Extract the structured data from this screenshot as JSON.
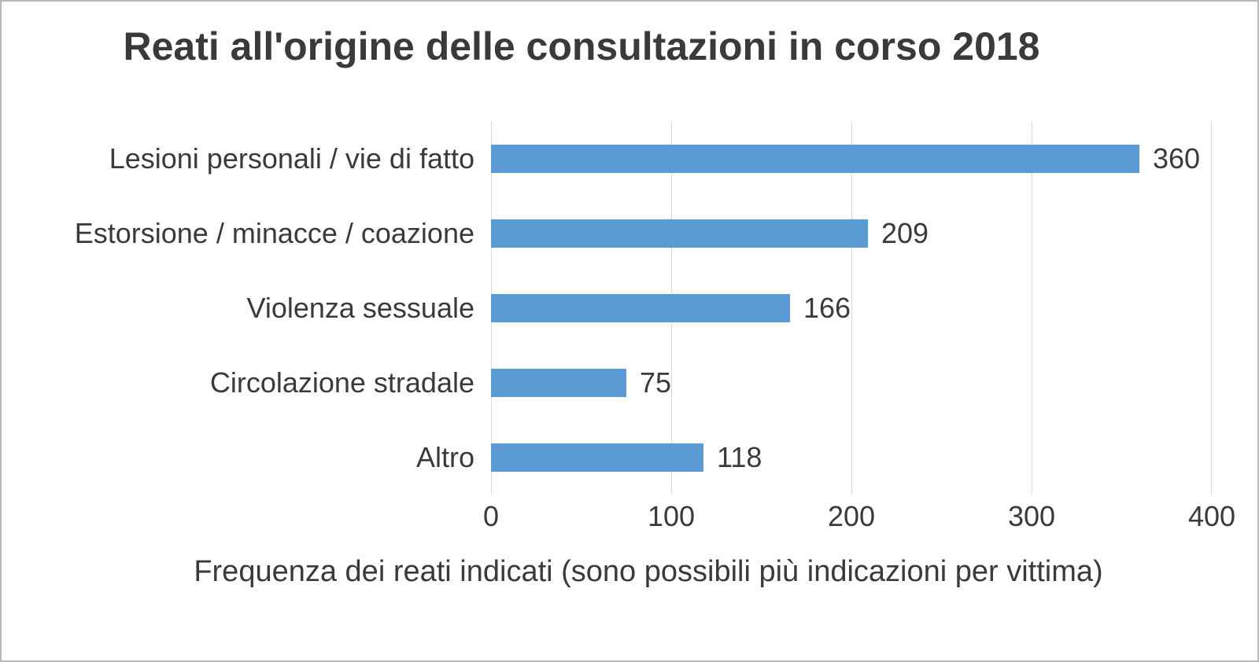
{
  "chart_data": {
    "type": "bar",
    "orientation": "horizontal",
    "title": "Reati all'origine delle consultazioni in corso 2018",
    "categories": [
      "Lesioni personali / vie di fatto",
      "Estorsione / minacce / coazione",
      "Violenza sessuale",
      "Circolazione stradale",
      "Altro"
    ],
    "values": [
      360,
      209,
      166,
      75,
      118
    ],
    "xlabel": "Frequenza dei reati indicati (sono possibili più indicazioni per vittima)",
    "ylabel": "",
    "xlim": [
      0,
      400
    ],
    "xticks": [
      0,
      100,
      200,
      300,
      400
    ],
    "grid": true,
    "legend": false,
    "bar_color": "#5b9bd5",
    "text_color": "#3a3a3a",
    "gridline_color": "#d9d9d9",
    "background_color": "#ffffff"
  }
}
